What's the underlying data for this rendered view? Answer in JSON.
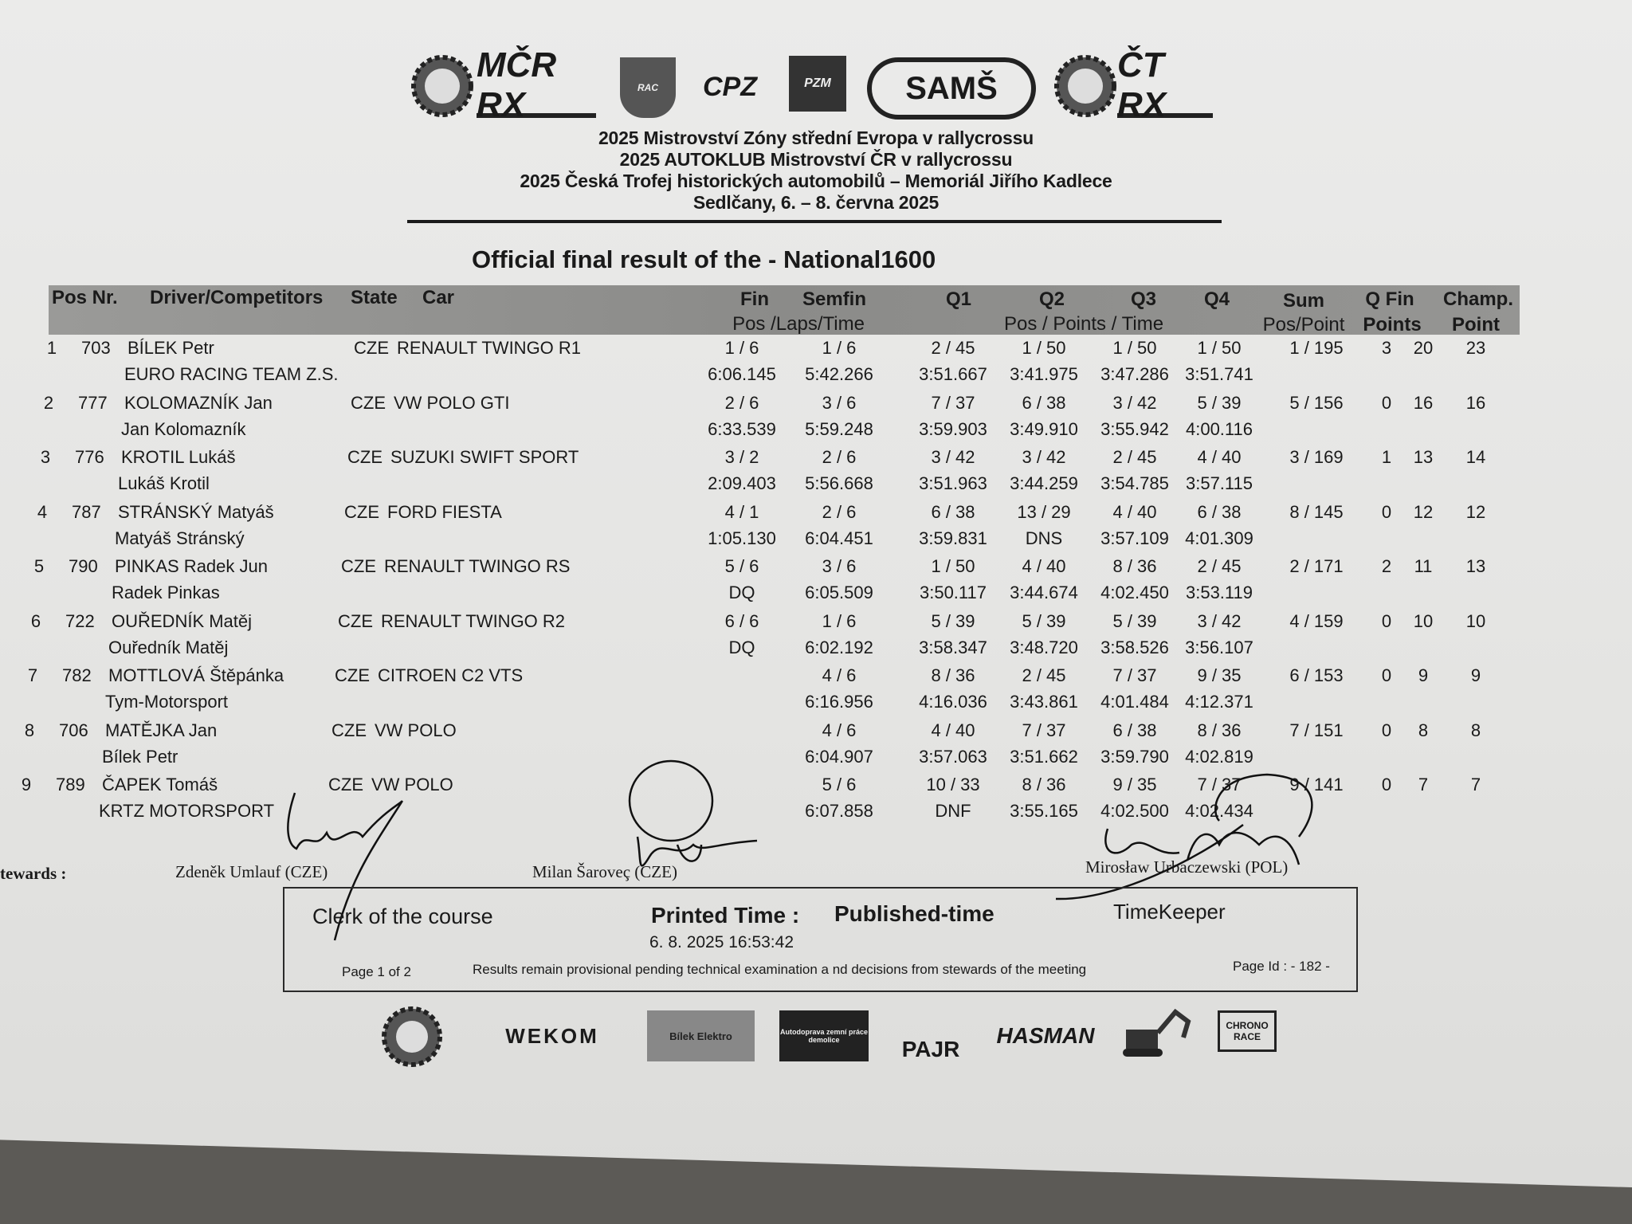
{
  "logos": {
    "top": [
      "MČR RX",
      "AUTOKLUB RAC Sedlčany",
      "CPZ",
      "PZM",
      "SAMŠ SLOVAKIA",
      "ČT RX"
    ],
    "sponsors": [
      "AČR",
      "WEKOM",
      "Bílek Elektro",
      "Autodoprava zemní práce demolice",
      "PAJR",
      "HASMAN",
      "excavator",
      "CHRONO RACE"
    ]
  },
  "header": {
    "lines": [
      "2025 Mistrovství Zóny střední Evropa v rallycrossu",
      "2025 AUTOKLUB Mistrovství ČR v rallycrossu",
      "2025 Česká Trofej historických automobilů – Memoriál Jiřího Kadlece",
      "Sedlčany, 6. – 8. června 2025"
    ],
    "title": "Official final result of the  -  National1600"
  },
  "columns": {
    "pos_nr": "Pos Nr.",
    "driver": "Driver/Competitors",
    "state": "State",
    "car": "Car",
    "fin": "Fin",
    "semfin": "Semfin",
    "fin_sub": "Pos /Laps/Time",
    "q1": "Q1",
    "q2": "Q2",
    "q3": "Q3",
    "q4": "Q4",
    "q_sub": "Pos / Points / Time",
    "sum": "Sum",
    "sum_sub": "Pos/Point",
    "qfin": "Q  Fin",
    "qfin_sub": "Points",
    "champ": "Champ.",
    "champ_sub": "Point"
  },
  "rows": [
    {
      "pos": "1",
      "nr": "703",
      "driver": "BÍLEK Petr",
      "team": "EURO RACING TEAM Z.S.",
      "state": "CZE",
      "car": "RENAULT TWINGO R1",
      "fin": "1 / 6",
      "fin_time": "6:06.145",
      "semfin": "1 / 6",
      "semfin_time": "5:42.266",
      "q1": "2 / 45",
      "q1_time": "3:51.667",
      "q2": "1 / 50",
      "q2_time": "3:41.975",
      "q3": "1 / 50",
      "q3_time": "3:47.286",
      "q4": "1 / 50",
      "q4_time": "3:51.741",
      "sum": "1 / 195",
      "q_points": "3",
      "fin_points": "20",
      "champ": "23"
    },
    {
      "pos": "2",
      "nr": "777",
      "driver": "KOLOMAZNÍK Jan",
      "team": "Jan Kolomazník",
      "state": "CZE",
      "car": "VW POLO GTI",
      "fin": "2 / 6",
      "fin_time": "6:33.539",
      "semfin": "3 / 6",
      "semfin_time": "5:59.248",
      "q1": "7 / 37",
      "q1_time": "3:59.903",
      "q2": "6 / 38",
      "q2_time": "3:49.910",
      "q3": "3 / 42",
      "q3_time": "3:55.942",
      "q4": "5 / 39",
      "q4_time": "4:00.116",
      "sum": "5 / 156",
      "q_points": "0",
      "fin_points": "16",
      "champ": "16"
    },
    {
      "pos": "3",
      "nr": "776",
      "driver": "KROTIL Lukáš",
      "team": "Lukáš Krotil",
      "state": "CZE",
      "car": "SUZUKI SWIFT SPORT",
      "fin": "3 / 2",
      "fin_time": "2:09.403",
      "semfin": "2 / 6",
      "semfin_time": "5:56.668",
      "q1": "3 / 42",
      "q1_time": "3:51.963",
      "q2": "3 / 42",
      "q2_time": "3:44.259",
      "q3": "2 / 45",
      "q3_time": "3:54.785",
      "q4": "4 / 40",
      "q4_time": "3:57.115",
      "sum": "3 / 169",
      "q_points": "1",
      "fin_points": "13",
      "champ": "14"
    },
    {
      "pos": "4",
      "nr": "787",
      "driver": "STRÁNSKÝ Matyáš",
      "team": "Matyáš Stránský",
      "state": "CZE",
      "car": "FORD FIESTA",
      "fin": "4 / 1",
      "fin_time": "1:05.130",
      "semfin": "2 / 6",
      "semfin_time": "6:04.451",
      "q1": "6 / 38",
      "q1_time": "3:59.831",
      "q2": "13 / 29",
      "q2_time": "DNS",
      "q3": "4 / 40",
      "q3_time": "3:57.109",
      "q4": "6 / 38",
      "q4_time": "4:01.309",
      "sum": "8 / 145",
      "q_points": "0",
      "fin_points": "12",
      "champ": "12"
    },
    {
      "pos": "5",
      "nr": "790",
      "driver": "PINKAS Radek Jun",
      "team": "Radek Pinkas",
      "state": "CZE",
      "car": "RENAULT TWINGO RS",
      "fin": "5 / 6",
      "fin_time": "DQ",
      "semfin": "3 / 6",
      "semfin_time": "6:05.509",
      "q1": "1 / 50",
      "q1_time": "3:50.117",
      "q2": "4 / 40",
      "q2_time": "3:44.674",
      "q3": "8 / 36",
      "q3_time": "4:02.450",
      "q4": "2 / 45",
      "q4_time": "3:53.119",
      "sum": "2 / 171",
      "q_points": "2",
      "fin_points": "11",
      "champ": "13"
    },
    {
      "pos": "6",
      "nr": "722",
      "driver": "OUŘEDNÍK Matěj",
      "team": "Ouředník Matěj",
      "state": "CZE",
      "car": "RENAULT TWINGO R2",
      "fin": "6 / 6",
      "fin_time": "DQ",
      "semfin": "1 / 6",
      "semfin_time": "6:02.192",
      "q1": "5 / 39",
      "q1_time": "3:58.347",
      "q2": "5 / 39",
      "q2_time": "3:48.720",
      "q3": "5 / 39",
      "q3_time": "3:58.526",
      "q4": "3 / 42",
      "q4_time": "3:56.107",
      "sum": "4 / 159",
      "q_points": "0",
      "fin_points": "10",
      "champ": "10"
    },
    {
      "pos": "7",
      "nr": "782",
      "driver": "MOTTLOVÁ Štěpánka",
      "team": "Tym-Motorsport",
      "state": "CZE",
      "car": "CITROEN C2 VTS",
      "fin": "",
      "fin_time": "",
      "semfin": "4 / 6",
      "semfin_time": "6:16.956",
      "q1": "8 / 36",
      "q1_time": "4:16.036",
      "q2": "2 / 45",
      "q2_time": "3:43.861",
      "q3": "7 / 37",
      "q3_time": "4:01.484",
      "q4": "9 / 35",
      "q4_time": "4:12.371",
      "sum": "6 / 153",
      "q_points": "0",
      "fin_points": "9",
      "champ": "9"
    },
    {
      "pos": "8",
      "nr": "706",
      "driver": "MATĚJKA Jan",
      "team": "Bílek Petr",
      "state": "CZE",
      "car": "VW POLO",
      "fin": "",
      "fin_time": "",
      "semfin": "4 / 6",
      "semfin_time": "6:04.907",
      "q1": "4 / 40",
      "q1_time": "3:57.063",
      "q2": "7 / 37",
      "q2_time": "3:51.662",
      "q3": "6 / 38",
      "q3_time": "3:59.790",
      "q4": "8 / 36",
      "q4_time": "4:02.819",
      "sum": "7 / 151",
      "q_points": "0",
      "fin_points": "8",
      "champ": "8"
    },
    {
      "pos": "9",
      "nr": "789",
      "driver": "ČAPEK Tomáš",
      "team": "KRTZ MOTORSPORT",
      "state": "CZE",
      "car": "VW POLO",
      "fin": "",
      "fin_time": "",
      "semfin": "5 / 6",
      "semfin_time": "6:07.858",
      "q1": "10 / 33",
      "q1_time": "DNF",
      "q2": "8 / 36",
      "q2_time": "3:55.165",
      "q3": "9 / 35",
      "q3_time": "4:02.500",
      "q4": "7 / 37",
      "q4_time": "4:02.434",
      "sum": "9 / 141",
      "q_points": "0",
      "fin_points": "7",
      "champ": "7"
    }
  ],
  "stewards": {
    "label": "tewards :",
    "names": [
      "Zdeněk Umlauf (CZE)",
      "Milan Šaroveç (CZE)",
      "Mirosław Urbaczewski (POL)"
    ]
  },
  "footer": {
    "clerk": "Clerk of the course",
    "printed_label": "Printed Time :",
    "printed_value": "6. 8. 2025 16:53:42",
    "published": "Published-time",
    "timekeeper": "TimeKeeper",
    "page": "Page 1 of 2",
    "note": "Results remain provisional pending technical examination a nd decisions from stewards of the meeting",
    "page_id": "Page Id :  - 182 -"
  }
}
